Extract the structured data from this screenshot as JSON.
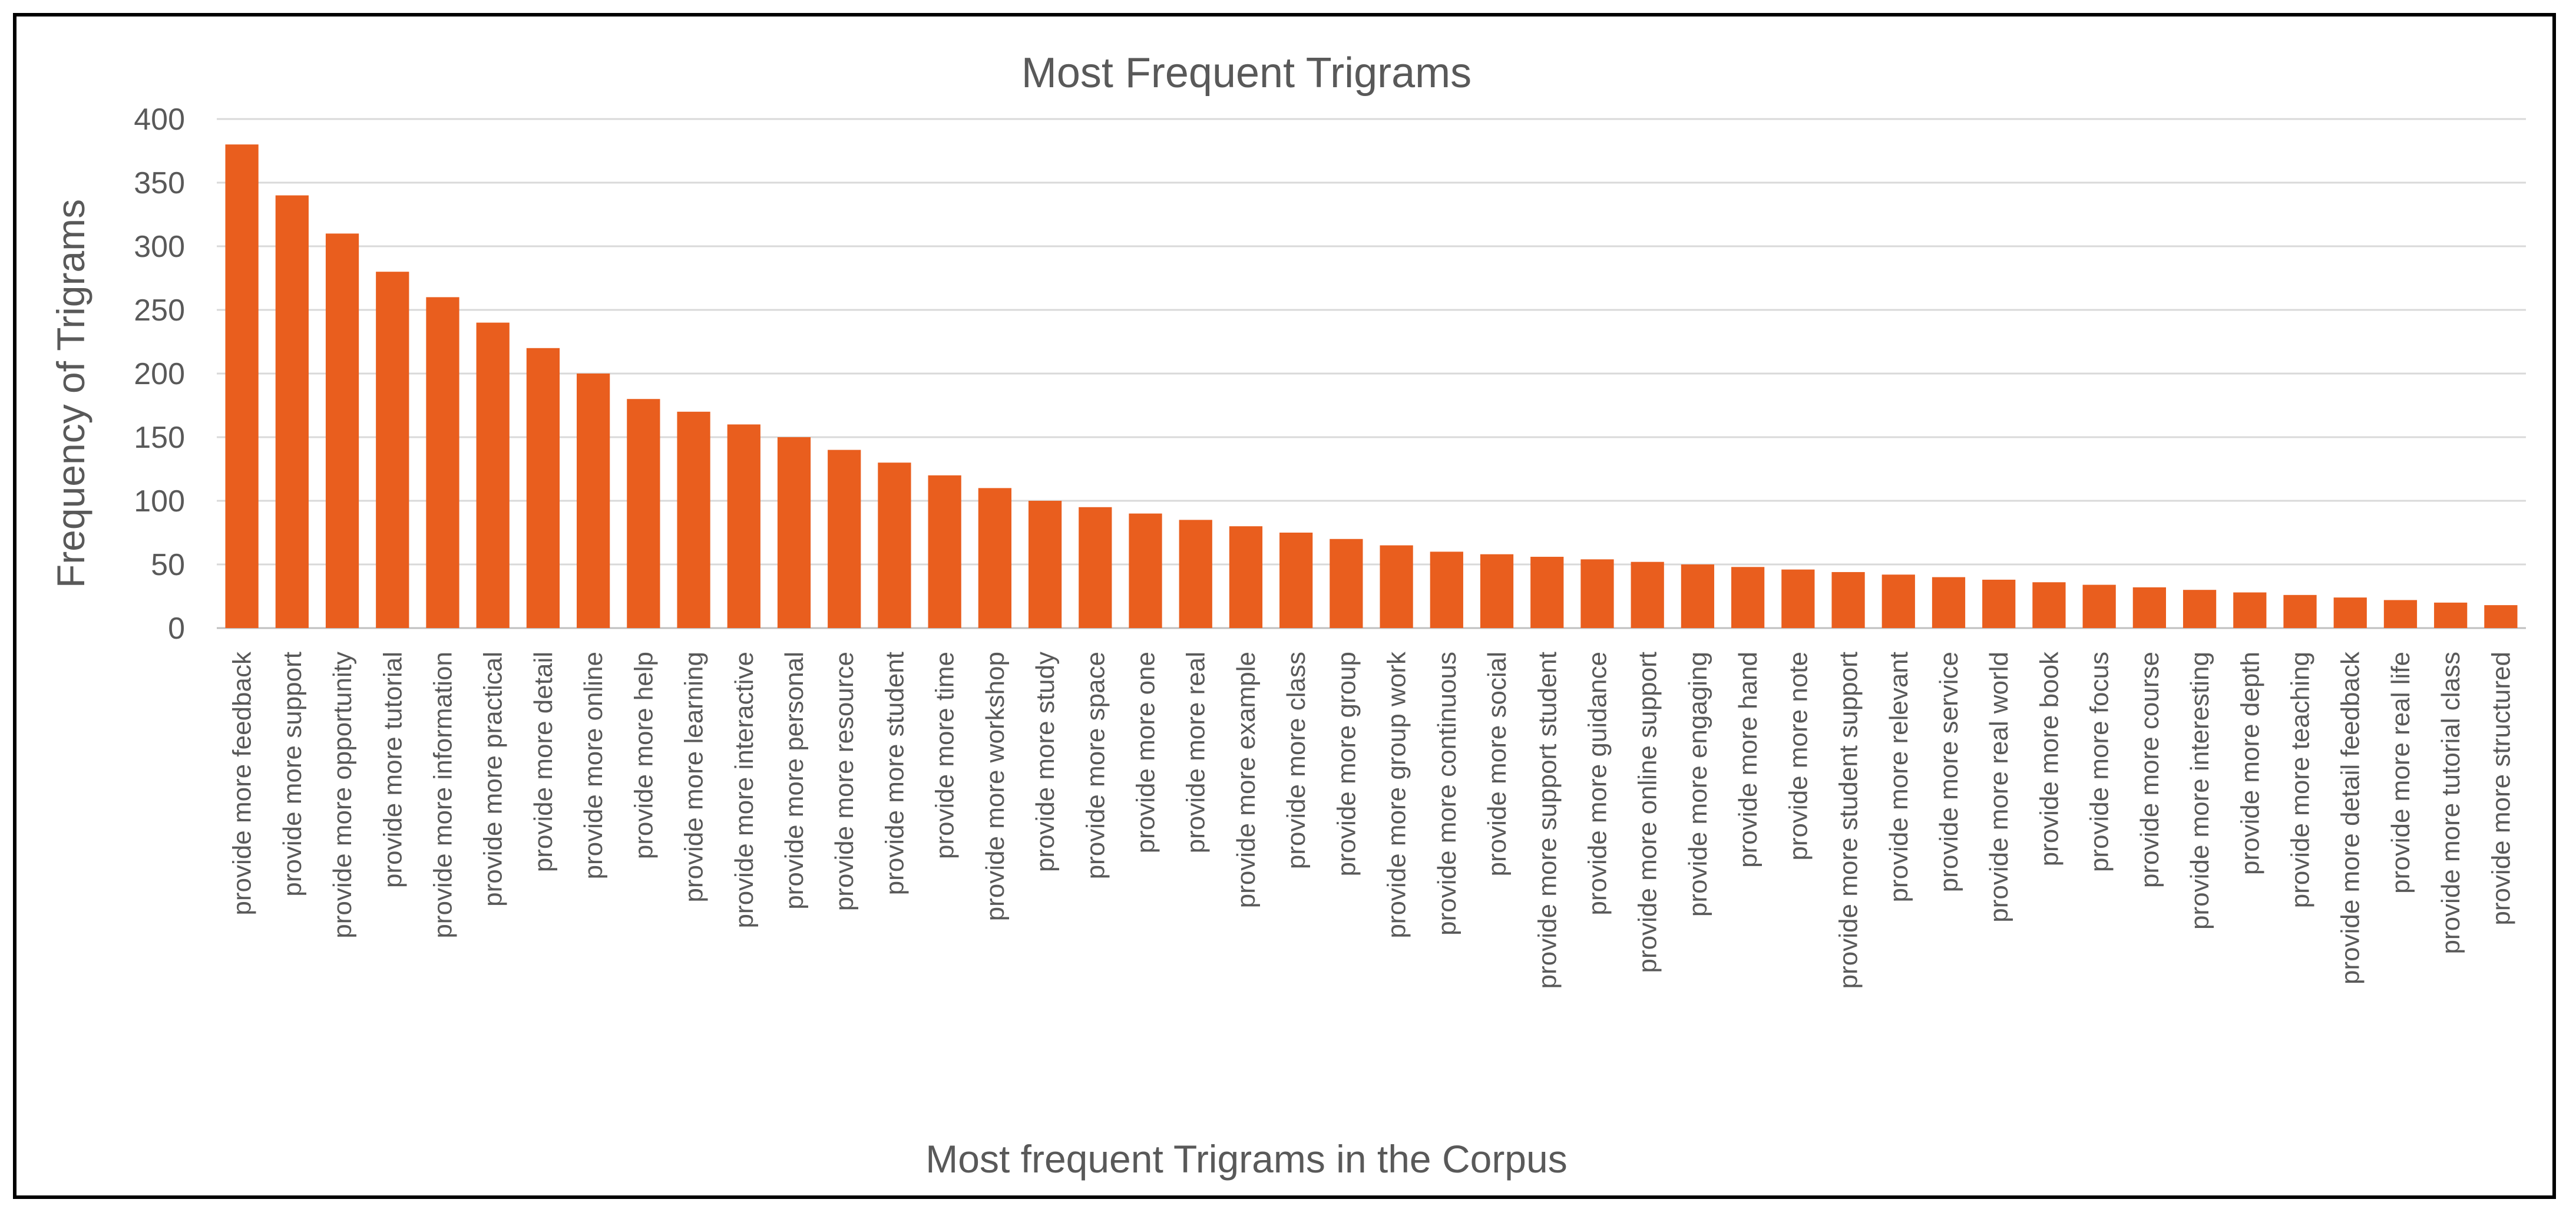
{
  "chart_data": {
    "type": "bar",
    "title": "Most Frequent Trigrams",
    "xlabel": "Most frequent Trigrams in the Corpus",
    "ylabel": "Frequency of Trigrams",
    "ylim": [
      0,
      400
    ],
    "yticks": [
      0,
      50,
      100,
      150,
      200,
      250,
      300,
      350,
      400
    ],
    "grid": true,
    "legend": "none",
    "bar_color": "#E95E1E",
    "categories": [
      "provide more feedback",
      "provide more support",
      "provide more opportunity",
      "provide more tutorial",
      "provide more information",
      "provide more practical",
      "provide more detail",
      "provide more online",
      "provide more help",
      "provide more learning",
      "provide more interactive",
      "provide more personal",
      "provide more resource",
      "provide more student",
      "provide more time",
      "provide more workshop",
      "provide more study",
      "provide more space",
      "provide more one",
      "provide more real",
      "provide more example",
      "provide more class",
      "provide more group",
      "provide more group work",
      "provide more continuous",
      "provide more social",
      "provide more support student",
      "provide more guidance",
      "provide more online support",
      "provide more engaging",
      "provide more hand",
      "provide more note",
      "provide more student support",
      "provide more relevant",
      "provide more service",
      "provide more real world",
      "provide more book",
      "provide more focus",
      "provide more course",
      "provide more interesting",
      "provide more depth",
      "provide more teaching",
      "provide more detail feedback",
      "provide more real life",
      "provide more tutorial class",
      "provide more structured"
    ],
    "values": [
      380,
      340,
      310,
      280,
      260,
      240,
      220,
      200,
      180,
      170,
      160,
      150,
      140,
      130,
      120,
      110,
      100,
      95,
      90,
      85,
      80,
      75,
      70,
      65,
      60,
      58,
      56,
      54,
      52,
      50,
      48,
      46,
      44,
      42,
      40,
      38,
      36,
      34,
      32,
      30,
      28,
      26,
      24,
      22,
      20,
      18
    ]
  }
}
